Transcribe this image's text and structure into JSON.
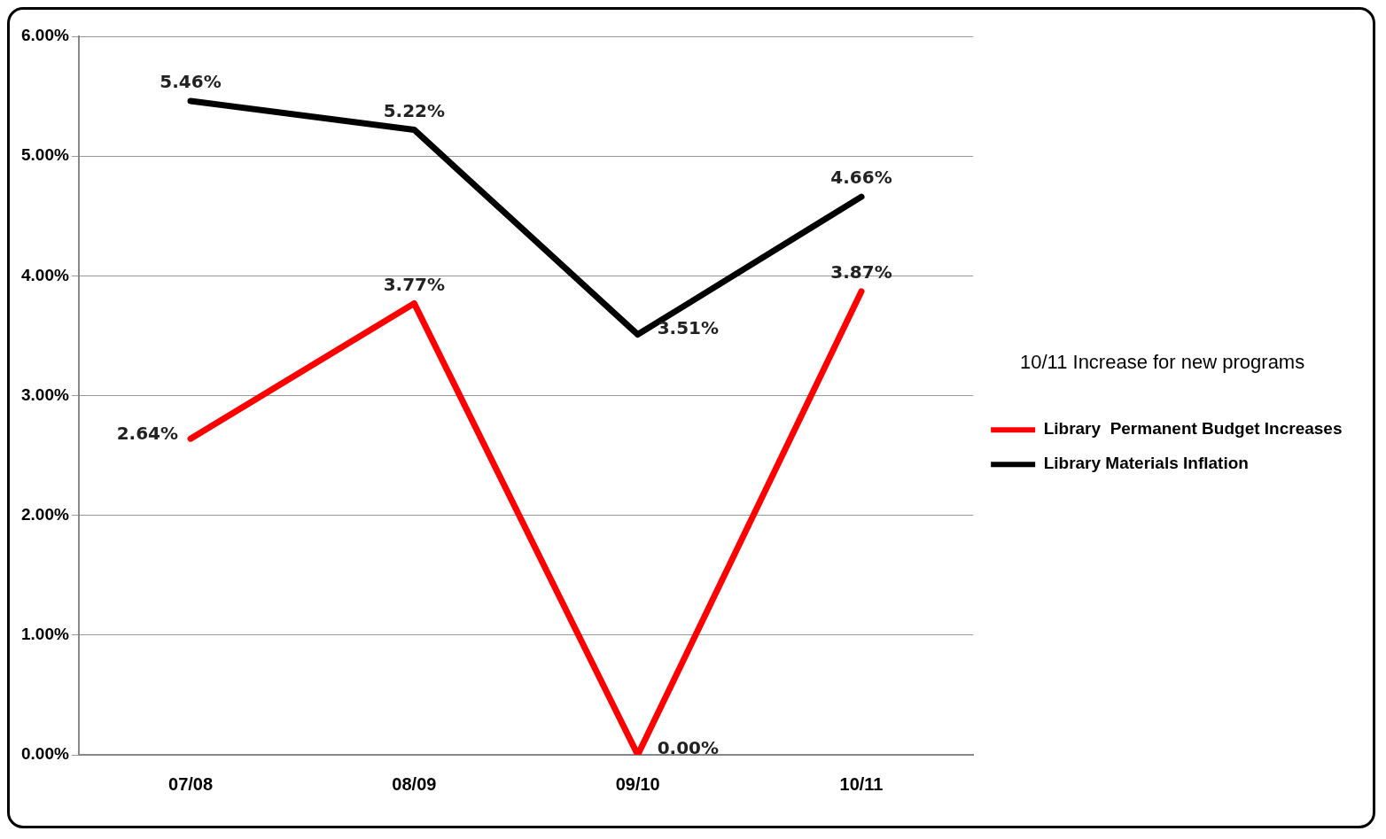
{
  "chart_data": {
    "type": "line",
    "categories": [
      "07/08",
      "08/09",
      "09/10",
      "10/11"
    ],
    "series": [
      {
        "name": "Library  Permanent Budget Increases",
        "color": "#ff0000",
        "values": [
          2.64,
          3.77,
          0.0,
          3.87
        ]
      },
      {
        "name": "Library Materials Inflation",
        "color": "#000000",
        "values": [
          5.46,
          5.22,
          3.51,
          4.66
        ]
      }
    ],
    "ylim": [
      0,
      6
    ],
    "yticks": [
      {
        "value": 0,
        "label": "0.00%"
      },
      {
        "value": 1,
        "label": "1.00%"
      },
      {
        "value": 2,
        "label": "2.00%"
      },
      {
        "value": 3,
        "label": "3.00%"
      },
      {
        "value": 4,
        "label": "4.00%"
      },
      {
        "value": 5,
        "label": "5.00%"
      },
      {
        "value": 6,
        "label": "6.00%"
      }
    ],
    "legend_title": "10/11 Increase for new programs",
    "legend": "right",
    "grid": "y",
    "marker": "none",
    "line_style": "solid",
    "value_labels": [
      [
        "2.64%",
        "3.77%",
        "0.00%",
        "3.87%"
      ],
      [
        "5.46%",
        "5.22%",
        "3.51%",
        "4.66%"
      ]
    ]
  }
}
